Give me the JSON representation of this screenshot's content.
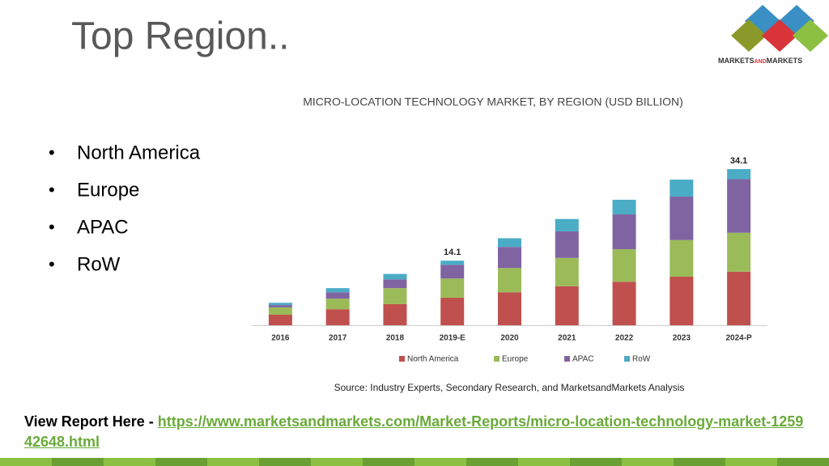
{
  "header": {
    "title": "Top Region..",
    "logo": [
      "MARKETS",
      "AND",
      "MARKETS"
    ]
  },
  "bullets": [
    "North America",
    "Europe",
    "APAC",
    "RoW"
  ],
  "chart_data": {
    "type": "stacked_bar",
    "title": "MICRO-LOCATION TECHNOLOGY MARKET, BY REGION (USD BILLION)",
    "categories": [
      "2016",
      "2017",
      "2018",
      "2019-E",
      "2020",
      "2021",
      "2022",
      "2023",
      "2024-P"
    ],
    "series": [
      {
        "name": "North America",
        "color": "#c0504d",
        "values": [
          2.3,
          3.5,
          4.6,
          6.0,
          7.2,
          8.5,
          9.5,
          10.6,
          11.7
        ]
      },
      {
        "name": "Europe",
        "color": "#9bbb59",
        "values": [
          1.6,
          2.3,
          3.5,
          4.2,
          5.3,
          6.2,
          7.1,
          8.0,
          8.5
        ]
      },
      {
        "name": "APAC",
        "color": "#8064a2",
        "values": [
          0.5,
          1.4,
          1.9,
          3.0,
          4.6,
          5.8,
          7.6,
          9.5,
          11.7
        ]
      },
      {
        "name": "RoW",
        "color": "#4bacc6",
        "values": [
          0.5,
          0.9,
          1.2,
          0.9,
          1.9,
          2.7,
          3.2,
          3.7,
          2.2
        ]
      }
    ],
    "totals": [
      null,
      null,
      null,
      14.1,
      null,
      null,
      null,
      null,
      34.1
    ],
    "source": "Source: Industry Experts, Secondary Research, and MarketsandMarkets Analysis",
    "legend": "bottom"
  },
  "footer": {
    "label": "View Report Here - ",
    "url": "https://www.marketsandmarkets.com/Market-Reports/micro-location-technology-market-125942648.html"
  }
}
